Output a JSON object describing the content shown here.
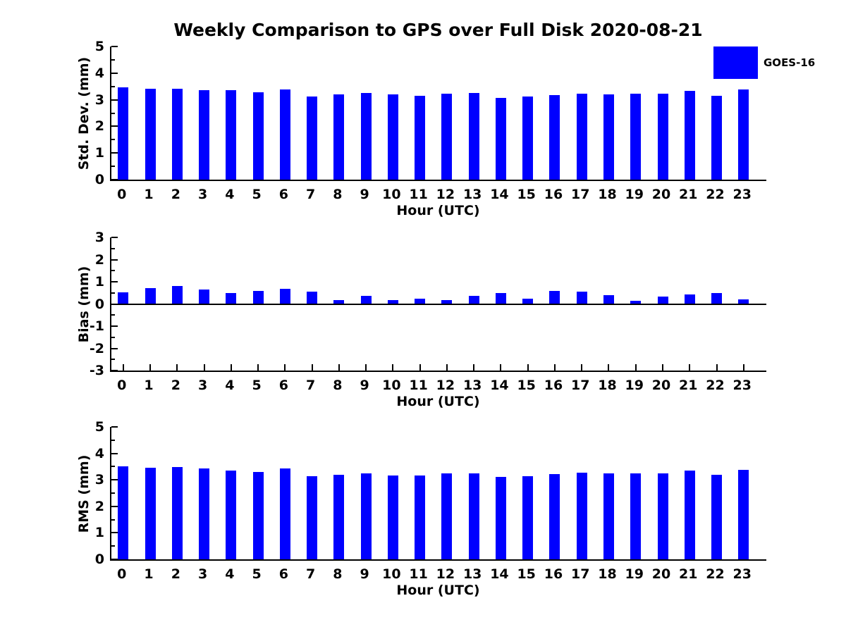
{
  "figure": {
    "title": "Weekly Comparison to GPS over Full Disk 2020-08-21"
  },
  "legend": {
    "label": "GOES-16",
    "swatch_color": "#0000FF",
    "position": "upper right"
  },
  "chart_data": [
    {
      "type": "bar",
      "categories": [
        "0",
        "1",
        "2",
        "3",
        "4",
        "5",
        "6",
        "7",
        "8",
        "9",
        "10",
        "11",
        "12",
        "13",
        "14",
        "15",
        "16",
        "17",
        "18",
        "19",
        "20",
        "21",
        "22",
        "23"
      ],
      "series": [
        {
          "name": "GOES-16",
          "color": "#0000FF",
          "values": [
            3.47,
            3.41,
            3.41,
            3.36,
            3.35,
            3.27,
            3.38,
            3.11,
            3.19,
            3.25,
            3.19,
            3.16,
            3.24,
            3.25,
            3.08,
            3.13,
            3.17,
            3.22,
            3.21,
            3.23,
            3.23,
            3.33,
            3.15,
            3.39
          ]
        }
      ],
      "xlabel": "Hour (UTC)",
      "ylabel": "Std. Dev. (mm)",
      "ylim": [
        0,
        5
      ],
      "yticks": [
        0,
        1,
        2,
        3,
        4,
        5
      ],
      "grid": false
    },
    {
      "type": "bar",
      "categories": [
        "0",
        "1",
        "2",
        "3",
        "4",
        "5",
        "6",
        "7",
        "8",
        "9",
        "10",
        "11",
        "12",
        "13",
        "14",
        "15",
        "16",
        "17",
        "18",
        "19",
        "20",
        "21",
        "22",
        "23"
      ],
      "series": [
        {
          "name": "GOES-16",
          "color": "#0000FF",
          "values": [
            0.51,
            0.71,
            0.82,
            0.65,
            0.49,
            0.59,
            0.68,
            0.56,
            0.17,
            0.36,
            0.17,
            0.23,
            0.17,
            0.35,
            0.48,
            0.24,
            0.6,
            0.57,
            0.41,
            0.15,
            0.32,
            0.44,
            0.48,
            0.22
          ]
        }
      ],
      "xlabel": "Hour (UTC)",
      "ylabel": "Bias (mm)",
      "ylim": [
        -3,
        3
      ],
      "yticks": [
        -3,
        -2,
        -1,
        0,
        1,
        2,
        3
      ],
      "grid": false
    },
    {
      "type": "bar",
      "categories": [
        "0",
        "1",
        "2",
        "3",
        "4",
        "5",
        "6",
        "7",
        "8",
        "9",
        "10",
        "11",
        "12",
        "13",
        "14",
        "15",
        "16",
        "17",
        "18",
        "19",
        "20",
        "21",
        "22",
        "23"
      ],
      "series": [
        {
          "name": "GOES-16",
          "color": "#0000FF",
          "values": [
            3.51,
            3.46,
            3.48,
            3.42,
            3.35,
            3.31,
            3.44,
            3.15,
            3.2,
            3.25,
            3.17,
            3.17,
            3.24,
            3.25,
            3.12,
            3.15,
            3.21,
            3.28,
            3.24,
            3.24,
            3.24,
            3.36,
            3.19,
            3.38
          ]
        }
      ],
      "xlabel": "Hour (UTC)",
      "ylabel": "RMS (mm)",
      "ylim": [
        0,
        5
      ],
      "yticks": [
        0,
        1,
        2,
        3,
        4,
        5
      ],
      "grid": false
    }
  ]
}
